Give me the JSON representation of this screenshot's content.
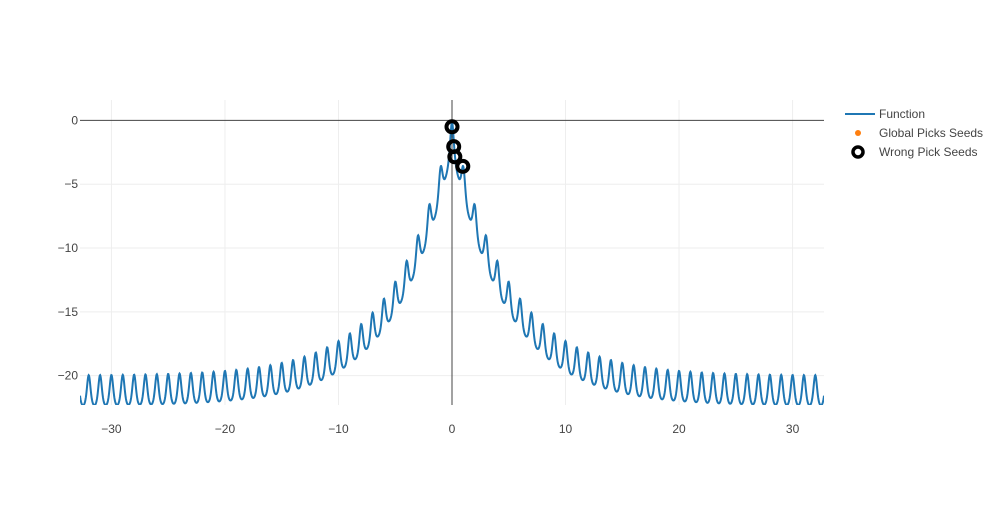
{
  "chart_data": {
    "type": "line",
    "title": "",
    "xlabel": "",
    "ylabel": "",
    "xlim": [
      -32.768,
      32.768
    ],
    "ylim": [
      -22.3,
      1.6
    ],
    "x_ticks": [
      -30,
      -20,
      -10,
      0,
      10,
      20,
      30
    ],
    "y_ticks": [
      0,
      -5,
      -10,
      -15,
      -20
    ],
    "x_tick_labels": [
      "−30",
      "−20",
      "−10",
      "0",
      "10",
      "20",
      "30"
    ],
    "y_tick_labels": [
      "0",
      "−5",
      "−10",
      "−15",
      "−20"
    ],
    "grid": true,
    "zero_lines": true,
    "legend_position": "top-right",
    "series": [
      {
        "name": "Function",
        "kind": "line",
        "color": "#1f77b4",
        "function": "-( -20*exp(-0.2*sqrt(x^2)) - exp(cos(2*pi*x)) + 20 + e )",
        "domain": [
          -32.768,
          32.768
        ],
        "samples": 2400
      },
      {
        "name": "Global Picks Seeds",
        "kind": "markers",
        "color": "#ff7f0e",
        "points": []
      },
      {
        "name": "Wrong Pick Seeds",
        "kind": "markers",
        "color": "#000000",
        "marker": "open-circle",
        "points": [
          {
            "x": 0.0,
            "y": -0.5
          },
          {
            "x": 0.15,
            "y": -2.05
          },
          {
            "x": 0.25,
            "y": -2.85
          },
          {
            "x": 0.95,
            "y": -3.6
          }
        ]
      }
    ]
  }
}
